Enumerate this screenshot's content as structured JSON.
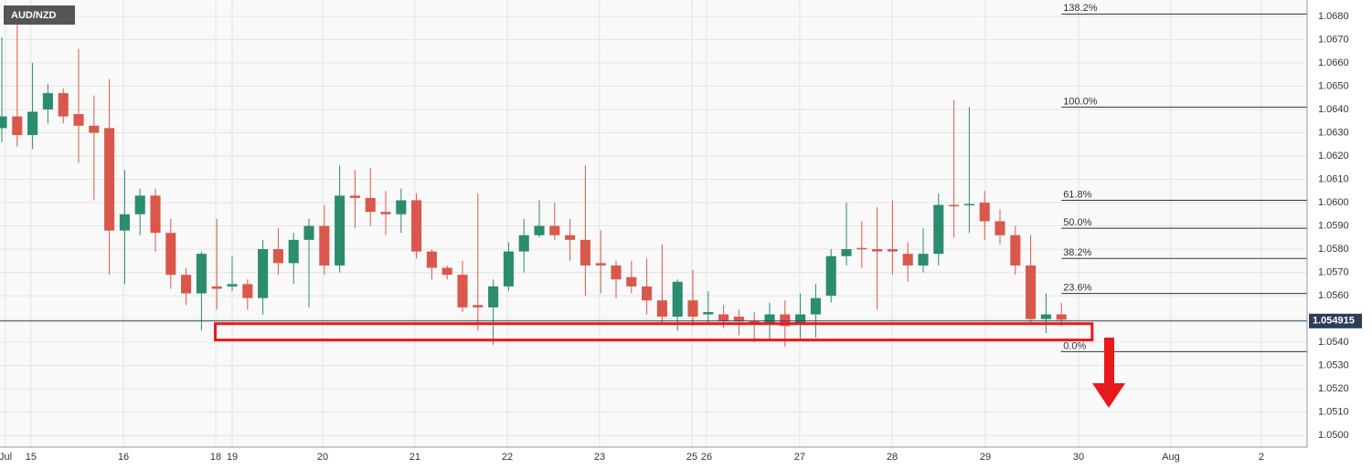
{
  "chart_data": {
    "type": "candlestick",
    "title": "AUD/NZD",
    "up_color": "#2b8c6f",
    "down_color": "#d9584b",
    "open": [
      1.0632,
      1.0637,
      1.0629,
      1.064,
      1.0647,
      1.0638,
      1.0633,
      1.0632,
      1.0588,
      1.0595,
      1.0603,
      1.0587,
      1.0569,
      1.0561,
      1.0564,
      1.0564,
      1.0565,
      1.0559,
      1.058,
      1.0574,
      1.0584,
      1.059,
      1.0573,
      1.0603,
      1.0602,
      1.0596,
      1.0595,
      1.0601,
      1.0579,
      1.0572,
      1.0569,
      1.0556,
      1.0555,
      1.0564,
      1.0579,
      1.0586,
      1.059,
      1.0586,
      1.0584,
      1.0574,
      1.0573,
      1.0568,
      1.0564,
      1.0558,
      1.0551,
      1.0558,
      1.0552,
      1.0552,
      1.0551,
      1.0549,
      1.0548,
      1.0552,
      1.0548,
      1.0552,
      1.056,
      1.0577,
      1.05805,
      1.058,
      1.058,
      1.0578,
      1.0573,
      1.0578,
      1.0599,
      1.0599,
      1.06,
      1.0592,
      1.0586,
      1.0573,
      1.055,
      1.0552
    ],
    "high": [
      1.0671,
      1.0683,
      1.066,
      1.0651,
      1.0649,
      1.0666,
      1.0646,
      1.0653,
      1.0614,
      1.0606,
      1.0606,
      1.0593,
      1.0572,
      1.0579,
      1.0593,
      1.0577,
      1.0567,
      1.0584,
      1.0589,
      1.0587,
      1.0593,
      1.0599,
      1.0616,
      1.0614,
      1.0615,
      1.0605,
      1.0606,
      1.0604,
      1.058,
      1.0573,
      1.0575,
      1.0604,
      1.0567,
      1.0583,
      1.0593,
      1.0601,
      1.06,
      1.0593,
      1.0616,
      1.0588,
      1.0575,
      1.0575,
      1.0576,
      1.0582,
      1.0567,
      1.0571,
      1.0562,
      1.0556,
      1.0554,
      1.0553,
      1.0557,
      1.0558,
      1.0561,
      1.0565,
      1.058,
      1.06,
      1.0592,
      1.0598,
      1.0601,
      1.0583,
      1.0589,
      1.0604,
      1.0644,
      1.0641,
      1.0605,
      1.0597,
      1.059,
      1.0586,
      1.0561,
      1.0557
    ],
    "low": [
      1.0626,
      1.0624,
      1.0623,
      1.0634,
      1.0634,
      1.0617,
      1.0601,
      1.0569,
      1.0565,
      1.0586,
      1.0579,
      1.0563,
      1.0556,
      1.0545,
      1.0554,
      1.0562,
      1.0554,
      1.0552,
      1.0569,
      1.0565,
      1.0555,
      1.0569,
      1.057,
      1.0589,
      1.059,
      1.0586,
      1.0587,
      1.0576,
      1.0567,
      1.0567,
      1.0553,
      1.0545,
      1.0539,
      1.0562,
      1.057,
      1.0585,
      1.0584,
      1.0575,
      1.056,
      1.0561,
      1.0559,
      1.0561,
      1.0552,
      1.0548,
      1.0545,
      1.0547,
      1.0548,
      1.0546,
      1.0543,
      1.054,
      1.0541,
      1.0538,
      1.0541,
      1.0542,
      1.0557,
      1.0573,
      1.0572,
      1.0554,
      1.0569,
      1.0566,
      1.057,
      1.0573,
      1.0585,
      1.0587,
      1.0584,
      1.0582,
      1.0569,
      1.0548,
      1.0544,
      1.0547
    ],
    "close": [
      1.0637,
      1.0629,
      1.0639,
      1.0647,
      1.0637,
      1.0633,
      1.063,
      1.0588,
      1.0595,
      1.0603,
      1.0587,
      1.0569,
      1.0561,
      1.0578,
      1.0563,
      1.0565,
      1.0559,
      1.058,
      1.0574,
      1.0584,
      1.059,
      1.0573,
      1.0603,
      1.0602,
      1.0596,
      1.0595,
      1.0601,
      1.0579,
      1.0572,
      1.0569,
      1.0555,
      1.0555,
      1.0564,
      1.0579,
      1.0586,
      1.059,
      1.0586,
      1.0584,
      1.0573,
      1.0573,
      1.0567,
      1.0564,
      1.0558,
      1.0551,
      1.0566,
      1.0551,
      1.0553,
      1.0549,
      1.0549,
      1.0548,
      1.0552,
      1.0547,
      1.0552,
      1.0559,
      1.0577,
      1.058,
      1.058,
      1.0579,
      1.0579,
      1.0573,
      1.0578,
      1.0599,
      1.05986,
      1.05994,
      1.0592,
      1.0586,
      1.0573,
      1.055,
      1.0552,
      1.05497
    ],
    "xlim": [
      -0.12,
      85
    ],
    "xticks": [
      {
        "value": 0.24,
        "label": "Jul"
      },
      {
        "value": 1.9,
        "label": "15"
      },
      {
        "value": 7.92,
        "label": "16"
      },
      {
        "value": 13.93,
        "label": "18"
      },
      {
        "value": 15.0,
        "label": "19"
      },
      {
        "value": 20.89,
        "label": "20"
      },
      {
        "value": 26.9,
        "label": "21"
      },
      {
        "value": 32.92,
        "label": "22"
      },
      {
        "value": 38.93,
        "label": "23"
      },
      {
        "value": 44.94,
        "label": "25"
      },
      {
        "value": 45.89,
        "label": "26"
      },
      {
        "value": 51.96,
        "label": "27"
      },
      {
        "value": 57.98,
        "label": "28"
      },
      {
        "value": 64.05,
        "label": "29"
      },
      {
        "value": 70.12,
        "label": "30"
      },
      {
        "value": 76.13,
        "label": "Aug"
      },
      {
        "value": 82.02,
        "label": "2"
      }
    ],
    "ylim": [
      1.0495,
      1.0687
    ],
    "yticks": [
      {
        "value": 1.05,
        "label": "1.0500"
      },
      {
        "value": 1.051,
        "label": "1.0510"
      },
      {
        "value": 1.052,
        "label": "1.0520"
      },
      {
        "value": 1.053,
        "label": "1.0530"
      },
      {
        "value": 1.054,
        "label": "1.0540"
      },
      {
        "value": 1.055,
        "label": "1.0550"
      },
      {
        "value": 1.056,
        "label": "1.0560"
      },
      {
        "value": 1.057,
        "label": "1.0570"
      },
      {
        "value": 1.058,
        "label": "1.0580"
      },
      {
        "value": 1.059,
        "label": "1.0590"
      },
      {
        "value": 1.06,
        "label": "1.0600"
      },
      {
        "value": 1.061,
        "label": "1.0610"
      },
      {
        "value": 1.062,
        "label": "1.0620"
      },
      {
        "value": 1.063,
        "label": "1.0630"
      },
      {
        "value": 1.064,
        "label": "1.0640"
      },
      {
        "value": 1.065,
        "label": "1.0650"
      },
      {
        "value": 1.066,
        "label": "1.0660"
      },
      {
        "value": 1.067,
        "label": "1.0670"
      },
      {
        "value": 1.068,
        "label": "1.0680"
      }
    ],
    "grid": true,
    "last_price": 1.054915,
    "fib_start": 69.0,
    "fib_levels": [
      {
        "label": "138.2%",
        "value": 1.0681
      },
      {
        "label": "100.0%",
        "value": 1.0641
      },
      {
        "label": "61.8%",
        "value": 1.0601
      },
      {
        "label": "50.0%",
        "value": 1.0589
      },
      {
        "label": "38.2%",
        "value": 1.0576
      },
      {
        "label": "23.6%",
        "value": 1.0561
      },
      {
        "label": "0.0%",
        "value": 1.0536
      }
    ],
    "zone": {
      "xlim": [
        13.9,
        71.0
      ],
      "ylim": [
        1.0541,
        1.0548
      ],
      "color": "#e8191b"
    }
  }
}
